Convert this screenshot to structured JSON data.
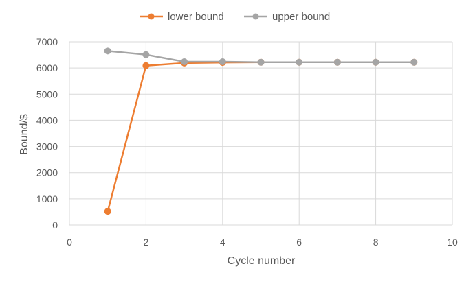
{
  "chart_data": {
    "type": "line",
    "title": "",
    "xlabel": "Cycle number",
    "ylabel": "Bound/$",
    "xlim": [
      0,
      10
    ],
    "ylim": [
      0,
      7000
    ],
    "xticks": [
      0,
      2,
      4,
      6,
      8,
      10
    ],
    "yticks": [
      0,
      1000,
      2000,
      3000,
      4000,
      5000,
      6000,
      7000
    ],
    "grid": true,
    "legend": "top",
    "series": [
      {
        "name": "lower bound",
        "color": "#ED7D31",
        "x": [
          1,
          2,
          3,
          4,
          5,
          6,
          7,
          8,
          9
        ],
        "y": [
          520,
          6090,
          6190,
          6210,
          6220,
          6220,
          6220,
          6220,
          6220
        ]
      },
      {
        "name": "upper bound",
        "color": "#A5A5A5",
        "x": [
          1,
          2,
          3,
          4,
          5,
          6,
          7,
          8,
          9
        ],
        "y": [
          6650,
          6510,
          6240,
          6240,
          6220,
          6220,
          6220,
          6220,
          6220
        ]
      }
    ]
  }
}
